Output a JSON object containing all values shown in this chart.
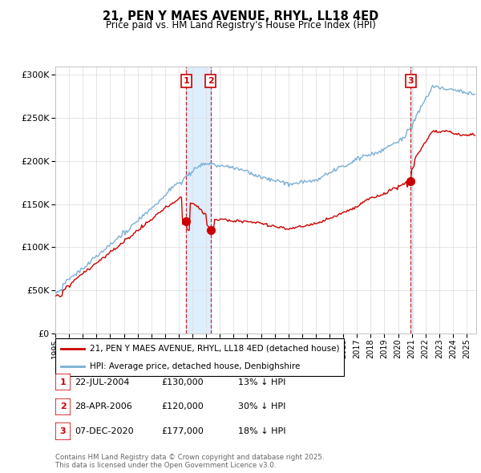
{
  "title": "21, PEN Y MAES AVENUE, RHYL, LL18 4ED",
  "subtitle": "Price paid vs. HM Land Registry's House Price Index (HPI)",
  "legend_property": "21, PEN Y MAES AVENUE, RHYL, LL18 4ED (detached house)",
  "legend_hpi": "HPI: Average price, detached house, Denbighshire",
  "transactions": [
    {
      "id": 1,
      "date": "22-JUL-2004",
      "price": 130000,
      "pct": "13%",
      "x_year": 2004.55
    },
    {
      "id": 2,
      "date": "28-APR-2006",
      "price": 120000,
      "pct": "30%",
      "x_year": 2006.33
    },
    {
      "id": 3,
      "date": "07-DEC-2020",
      "price": 177000,
      "pct": "18%",
      "x_year": 2020.92
    }
  ],
  "footer": "Contains HM Land Registry data © Crown copyright and database right 2025.\nThis data is licensed under the Open Government Licence v3.0.",
  "property_color": "#cc0000",
  "hpi_color": "#7bafd4",
  "dashed_line_color": "#cc0000",
  "shade_color": "#ddeeff",
  "grid_color": "#e0e0e0",
  "background_color": "#ffffff",
  "ylim": [
    0,
    310000
  ],
  "xlim_start": 1995.0,
  "xlim_end": 2025.7
}
